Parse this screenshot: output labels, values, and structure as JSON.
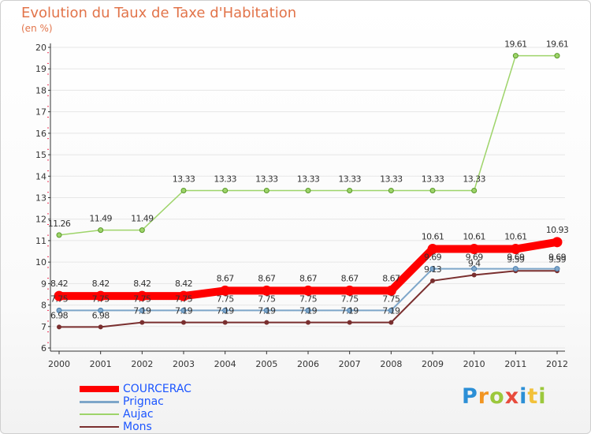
{
  "chart_data": {
    "type": "line",
    "title": "Evolution du Taux de Taxe d'Habitation",
    "subtitle": "(en %)",
    "xlabel": "",
    "ylabel": "",
    "ylim": [
      6,
      20
    ],
    "yticks": [
      6,
      7,
      8,
      9,
      10,
      11,
      12,
      13,
      14,
      15,
      16,
      17,
      18,
      19,
      20
    ],
    "categories": [
      "2000",
      "2001",
      "2002",
      "2003",
      "2004",
      "2005",
      "2006",
      "2007",
      "2008",
      "2009",
      "2010",
      "2011",
      "2012"
    ],
    "series": [
      {
        "name": "Mons",
        "color": "#7a2f2f",
        "values": [
          6.98,
          6.98,
          7.19,
          7.19,
          7.19,
          7.19,
          7.19,
          7.19,
          7.19,
          9.13,
          9.4,
          9.59,
          9.59
        ],
        "labels": [
          "6.98",
          "6.98",
          "7.19",
          "7.19",
          "7.19",
          "7.19",
          "7.19",
          "7.19",
          "7.19",
          "9.13",
          "9.4",
          "9.59",
          "9.59"
        ]
      },
      {
        "name": "Prignac",
        "color": "#7ea6c9",
        "values": [
          7.75,
          7.75,
          7.75,
          7.75,
          7.75,
          7.75,
          7.75,
          7.75,
          7.75,
          9.69,
          9.69,
          9.69,
          9.69
        ],
        "labels": [
          "7.75",
          "7.75",
          "7.75",
          "7.75",
          "7.75",
          "7.75",
          "7.75",
          "7.75",
          "7.75",
          "9.69",
          "9.69",
          "9.69",
          "9.69"
        ]
      },
      {
        "name": "Aujac",
        "color": "#9ed46a",
        "values": [
          11.26,
          11.49,
          11.49,
          13.33,
          13.33,
          13.33,
          13.33,
          13.33,
          13.33,
          13.33,
          13.33,
          19.61,
          19.61
        ],
        "labels": [
          "11.26",
          "11.49",
          "11.49",
          "13.33",
          "13.33",
          "13.33",
          "13.33",
          "13.33",
          "13.33",
          "13.33",
          "13.33",
          "19.61",
          "19.61"
        ]
      },
      {
        "name": "COURCERAC",
        "color": "#ff0000",
        "values": [
          8.42,
          8.42,
          8.42,
          8.42,
          8.67,
          8.67,
          8.67,
          8.67,
          8.67,
          10.61,
          10.61,
          10.61,
          10.93
        ],
        "labels": [
          "8.42",
          "8.42",
          "8.42",
          "8.42",
          "8.67",
          "8.67",
          "8.67",
          "8.67",
          "8.67",
          "10.61",
          "10.61",
          "10.61",
          "10.93"
        ]
      }
    ],
    "legend": {
      "placement": "bottom-left",
      "items": [
        {
          "name": "COURCERAC",
          "color": "#ff0000"
        },
        {
          "name": "Prignac",
          "color": "#7ea6c9"
        },
        {
          "name": "Aujac",
          "color": "#9ed46a"
        },
        {
          "name": "Mons",
          "color": "#7a2f2f"
        }
      ]
    }
  },
  "branding": {
    "letters": [
      "P",
      "r",
      "o",
      "x",
      "i",
      "t",
      "i"
    ]
  }
}
